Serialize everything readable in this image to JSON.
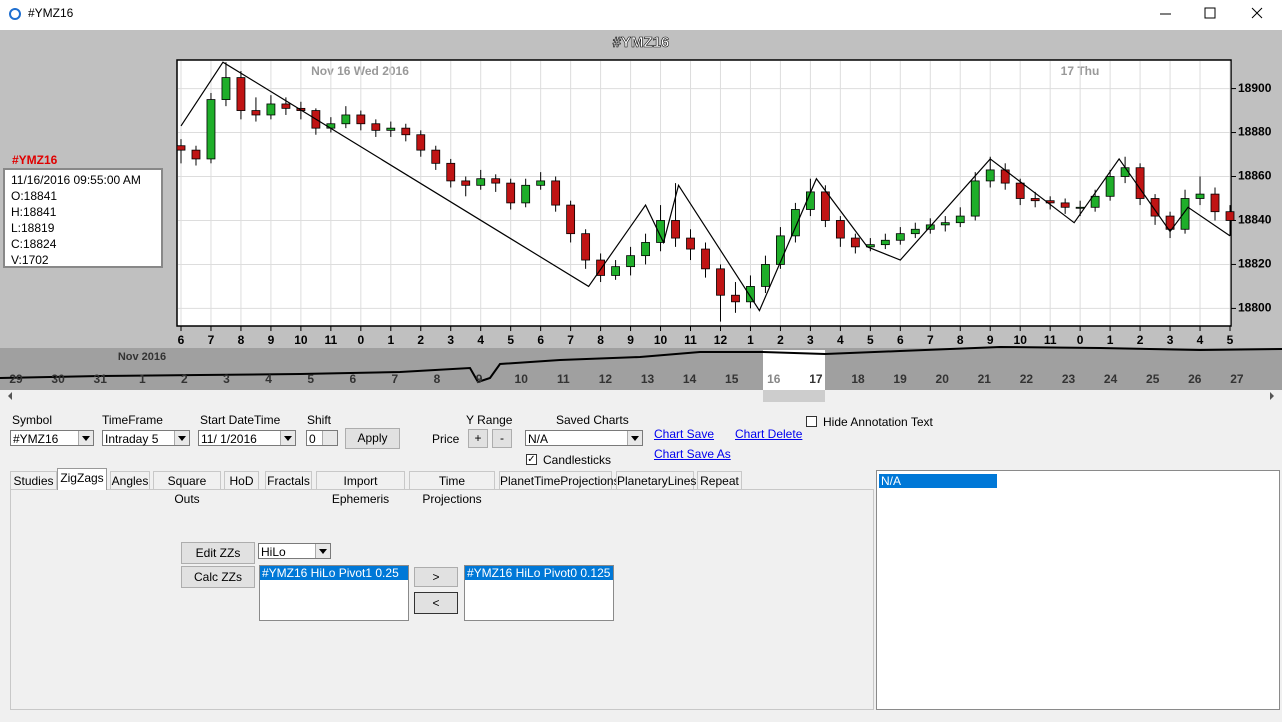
{
  "window_title": "#YMZ16",
  "chart_data": {
    "type": "candlestick",
    "title": "#YMZ16",
    "annotations": [
      "Nov 16 Wed 2016",
      "17 Thu"
    ],
    "up_color": "#1fae2a",
    "down_color": "#c01414",
    "grid": true,
    "xlim": [
      0,
      35
    ],
    "ylim": [
      18792,
      18913
    ],
    "yticks": [
      18800,
      18820,
      18840,
      18860,
      18880,
      18900
    ],
    "xticks": [
      {
        "value": 0,
        "label": "6"
      },
      {
        "value": 1,
        "label": "7"
      },
      {
        "value": 2,
        "label": "8"
      },
      {
        "value": 3,
        "label": "9"
      },
      {
        "value": 4,
        "label": "10"
      },
      {
        "value": 5,
        "label": "11"
      },
      {
        "value": 6,
        "label": "0"
      },
      {
        "value": 7,
        "label": "1"
      },
      {
        "value": 8,
        "label": "2"
      },
      {
        "value": 9,
        "label": "3"
      },
      {
        "value": 10,
        "label": "4"
      },
      {
        "value": 11,
        "label": "5"
      },
      {
        "value": 12,
        "label": "6"
      },
      {
        "value": 13,
        "label": "7"
      },
      {
        "value": 14,
        "label": "8"
      },
      {
        "value": 15,
        "label": "9"
      },
      {
        "value": 16,
        "label": "10"
      },
      {
        "value": 17,
        "label": "11"
      },
      {
        "value": 18,
        "label": "12"
      },
      {
        "value": 19,
        "label": "1"
      },
      {
        "value": 20,
        "label": "2"
      },
      {
        "value": 21,
        "label": "3"
      },
      {
        "value": 22,
        "label": "4"
      },
      {
        "value": 23,
        "label": "5"
      },
      {
        "value": 24,
        "label": "6"
      },
      {
        "value": 25,
        "label": "7"
      },
      {
        "value": 26,
        "label": "8"
      },
      {
        "value": 27,
        "label": "9"
      },
      {
        "value": 28,
        "label": "10"
      },
      {
        "value": 29,
        "label": "11"
      },
      {
        "value": 30,
        "label": "0"
      },
      {
        "value": 31,
        "label": "1"
      },
      {
        "value": 32,
        "label": "2"
      },
      {
        "value": 33,
        "label": "3"
      },
      {
        "value": 34,
        "label": "4"
      },
      {
        "value": 35,
        "label": "5"
      }
    ],
    "candles": [
      [
        18874,
        18877,
        18866,
        18872
      ],
      [
        18872,
        18874,
        18865,
        18868
      ],
      [
        18868,
        18898,
        18866,
        18895
      ],
      [
        18895,
        18912,
        18892,
        18905
      ],
      [
        18905,
        18908,
        18886,
        18890
      ],
      [
        18890,
        18896,
        18885,
        18888
      ],
      [
        18888,
        18897,
        18886,
        18893
      ],
      [
        18893,
        18896,
        18888,
        18891
      ],
      [
        18891,
        18894,
        18886,
        18890
      ],
      [
        18890,
        18891,
        18879,
        18882
      ],
      [
        18882,
        18887,
        18880,
        18884
      ],
      [
        18884,
        18892,
        18882,
        18888
      ],
      [
        18888,
        18890,
        18881,
        18884
      ],
      [
        18884,
        18886,
        18878,
        18881
      ],
      [
        18881,
        18885,
        18878,
        18882
      ],
      [
        18882,
        18884,
        18876,
        18879
      ],
      [
        18879,
        18881,
        18869,
        18872
      ],
      [
        18872,
        18874,
        18863,
        18866
      ],
      [
        18866,
        18868,
        18855,
        18858
      ],
      [
        18858,
        18860,
        18851,
        18856
      ],
      [
        18856,
        18863,
        18854,
        18859
      ],
      [
        18859,
        18861,
        18853,
        18857
      ],
      [
        18857,
        18859,
        18845,
        18848
      ],
      [
        18848,
        18859,
        18846,
        18856
      ],
      [
        18856,
        18862,
        18854,
        18858
      ],
      [
        18858,
        18860,
        18844,
        18847
      ],
      [
        18847,
        18849,
        18830,
        18834
      ],
      [
        18834,
        18836,
        18818,
        18822
      ],
      [
        18822,
        18825,
        18812,
        18815
      ],
      [
        18815,
        18822,
        18813,
        18819
      ],
      [
        18819,
        18828,
        18815,
        18824
      ],
      [
        18824,
        18834,
        18820,
        18830
      ],
      [
        18830,
        18847,
        18826,
        18840
      ],
      [
        18840,
        18857,
        18828,
        18832
      ],
      [
        18832,
        18836,
        18822,
        18827
      ],
      [
        18827,
        18830,
        18814,
        18818
      ],
      [
        18818,
        18820,
        18794,
        18806
      ],
      [
        18806,
        18812,
        18798,
        18803
      ],
      [
        18803,
        18815,
        18800,
        18810
      ],
      [
        18810,
        18824,
        18807,
        18820
      ],
      [
        18820,
        18837,
        18818,
        18833
      ],
      [
        18833,
        18848,
        18830,
        18845
      ],
      [
        18845,
        18859,
        18842,
        18853
      ],
      [
        18853,
        18856,
        18837,
        18840
      ],
      [
        18840,
        18842,
        18828,
        18832
      ],
      [
        18832,
        18834,
        18825,
        18828
      ],
      [
        18828,
        18832,
        18826,
        18829
      ],
      [
        18829,
        18834,
        18827,
        18831
      ],
      [
        18831,
        18837,
        18829,
        18834
      ],
      [
        18834,
        18839,
        18832,
        18836
      ],
      [
        18836,
        18841,
        18834,
        18838
      ],
      [
        18838,
        18842,
        18835,
        18839
      ],
      [
        18839,
        18846,
        18837,
        18842
      ],
      [
        18842,
        18862,
        18840,
        18858
      ],
      [
        18858,
        18869,
        18855,
        18863
      ],
      [
        18863,
        18866,
        18854,
        18857
      ],
      [
        18857,
        18859,
        18847,
        18850
      ],
      [
        18850,
        18853,
        18846,
        18849
      ],
      [
        18849,
        18851,
        18845,
        18848
      ],
      [
        18848,
        18850,
        18843,
        18846
      ],
      [
        18846,
        18849,
        18842,
        18846
      ],
      [
        18846,
        18854,
        18844,
        18851
      ],
      [
        18851,
        18863,
        18849,
        18860
      ],
      [
        18860,
        18869,
        18857,
        18864
      ],
      [
        18864,
        18866,
        18847,
        18850
      ],
      [
        18850,
        18852,
        18838,
        18842
      ],
      [
        18842,
        18844,
        18832,
        18836
      ],
      [
        18836,
        18854,
        18834,
        18850
      ],
      [
        18850,
        18860,
        18847,
        18852
      ],
      [
        18852,
        18855,
        18840,
        18844
      ],
      [
        18844,
        18847,
        18833,
        18840
      ]
    ],
    "zigzag": {
      "x": [
        0,
        1.4,
        13.6,
        15.5,
        16.1,
        16.6,
        19.3,
        21.2,
        22.9,
        24,
        27,
        29.8,
        31.3,
        33,
        33.6,
        35
      ],
      "y": [
        18883,
        18912,
        18810,
        18847,
        18830,
        18856,
        18799,
        18859,
        18828,
        18822,
        18868,
        18839,
        18868,
        18835,
        18846,
        18833
      ]
    }
  },
  "info": {
    "symbol": "#YMZ16",
    "lines": [
      "11/16/2016 09:55:00 AM",
      "O:18841",
      "H:18841",
      "L:18819",
      "C:18824",
      "V:1702"
    ]
  },
  "navigator": {
    "month": "Nov 2016",
    "days": [
      "29",
      "30",
      "31",
      "1",
      "2",
      "3",
      "4",
      "5",
      "6",
      "7",
      "8",
      "9",
      "10",
      "11",
      "12",
      "13",
      "14",
      "15",
      "16",
      "17",
      "18",
      "19",
      "20",
      "21",
      "22",
      "23",
      "24",
      "25",
      "26",
      "27"
    ]
  },
  "controls": {
    "symbol_label": "Symbol",
    "symbol": "#YMZ16",
    "timeframe_label": "TimeFrame",
    "timeframe": "Intraday 5",
    "start_label": "Start DateTime",
    "start": "11/ 1/2016",
    "shift_label": "Shift",
    "shift": "0",
    "apply": "Apply",
    "price_label": "Price",
    "yrange_label": "Y Range",
    "plus": "+",
    "minus": "-",
    "saved_label": "Saved Charts",
    "saved": "N/A",
    "candlesticks": "Candlesticks",
    "chart_save": "Chart Save",
    "chart_save_as": "Chart Save As",
    "chart_delete": "Chart Delete",
    "hide_annotation": "Hide Annotation Text"
  },
  "tabs": [
    "Studies",
    "ZigZags",
    "Angles",
    "Square Outs",
    "HoD",
    "Fractals",
    "Import Ephemeris",
    "Time Projections",
    "PlanetTimeProjections",
    "PlanetaryLines",
    "Repeat"
  ],
  "zigzag_panel": {
    "edit": "Edit ZZs",
    "calc": "Calc ZZs",
    "method": "HiLo",
    "left_list": [
      "#YMZ16 HiLo Pivot1 0.25"
    ],
    "right": ">",
    "left": "<",
    "right_list": [
      "#YMZ16 HiLo Pivot0 0.125"
    ]
  },
  "right_list": [
    "N/A"
  ]
}
